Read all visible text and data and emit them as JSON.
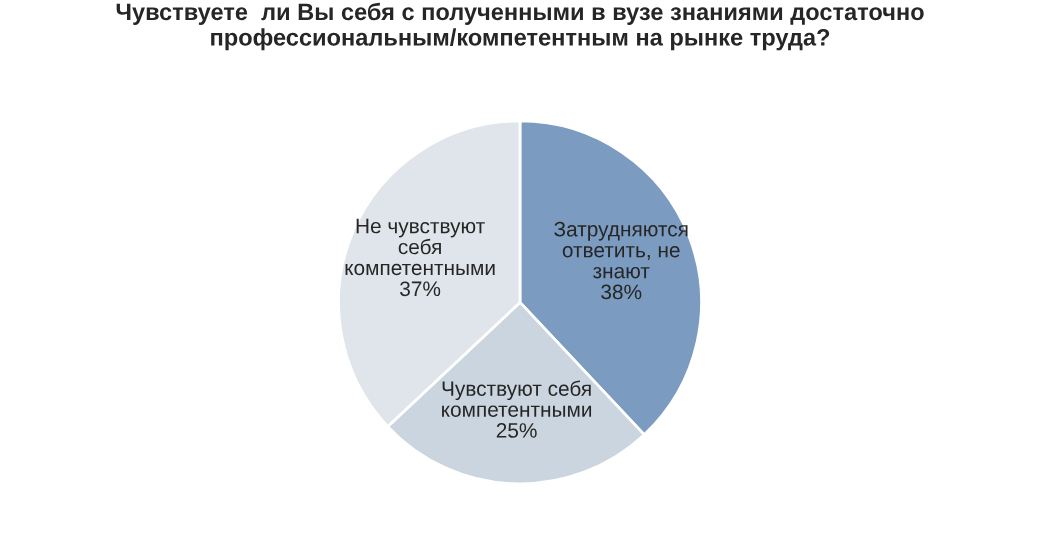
{
  "chart_data": {
    "type": "pie",
    "title": "Чувствуете  ли Вы себя с полученными в вузе знаниями достаточно\nпрофессиональным/компетентным на рынке труда?",
    "categories": [
      "Затрудняются\nответить, не\nзнают",
      "Чувствуют себя\nкомпетентными",
      "Не чувствуют\nсебя\nкомпетентными"
    ],
    "values": [
      38,
      25,
      37
    ],
    "value_labels": [
      "38%",
      "25%",
      "37%"
    ],
    "colors": [
      "#7b9cc0",
      "#cbd5df",
      "#dfe5ea"
    ],
    "legend": false
  }
}
